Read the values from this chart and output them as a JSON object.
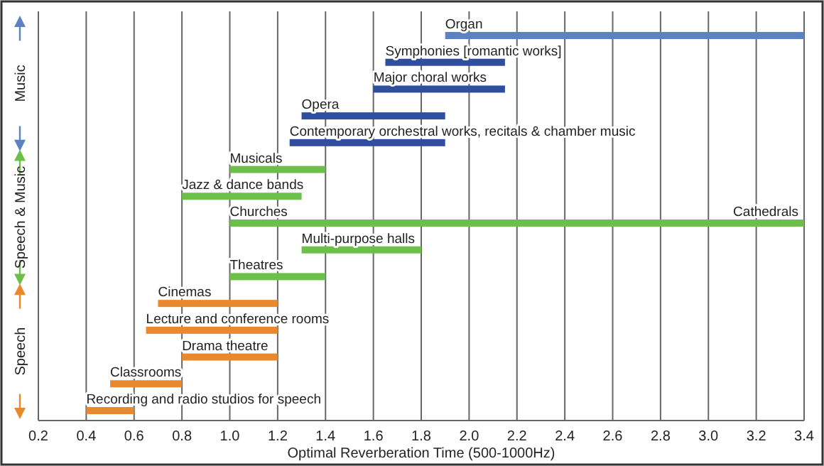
{
  "chart_data": {
    "type": "bar",
    "orientation": "horizontal",
    "xlabel": "Optimal Reverberation Time (500-1000Hz)",
    "categories": [
      "Organ",
      "Symphonies [romantic works]",
      "Major choral works",
      "Opera",
      "Contemporary orchestral works, recitals & chamber music",
      "Musicals",
      "Jazz & dance bands",
      "Churches",
      "Multi-purpose halls",
      "Theatres",
      "Cinemas",
      "Lecture and conference rooms",
      "Drama theatre",
      "Classrooms",
      "Recording and radio studios for speech"
    ],
    "base": [
      1.9,
      1.65,
      1.6,
      1.3,
      1.25,
      1.0,
      0.8,
      1.0,
      1.3,
      1.0,
      0.7,
      0.65,
      0.8,
      0.5,
      0.4
    ],
    "values": [
      1.5,
      0.5,
      0.55,
      0.6,
      0.65,
      0.4,
      0.5,
      2.4,
      0.5,
      0.4,
      0.5,
      0.55,
      0.4,
      0.3,
      0.2
    ],
    "colors": [
      "#5b82c2",
      "#2f4f9e",
      "#2f4f9e",
      "#2f4f9e",
      "#2f4f9e",
      "#6cc04a",
      "#6cc04a",
      "#6cc04a",
      "#6cc04a",
      "#6cc04a",
      "#e8892e",
      "#e8892e",
      "#e8892e",
      "#e8892e",
      "#e8892e"
    ],
    "xlim": [
      0.2,
      3.4
    ],
    "xticks": [
      0.2,
      0.4,
      0.6,
      0.8,
      {
        "value": 1,
        "label": "1.0"
      },
      1.2,
      1.4,
      1.6,
      1.8,
      {
        "value": 2,
        "label": "2.0"
      },
      2.2,
      2.4,
      2.6,
      2.8,
      {
        "value": 3,
        "label": "3.0"
      },
      3.2,
      3.4
    ],
    "grid": "x",
    "annotations": [
      {
        "text": "Cathedrals",
        "x": 3.4,
        "y": "Churches"
      },
      "Music",
      "Speech & Music",
      "Speech"
    ]
  }
}
